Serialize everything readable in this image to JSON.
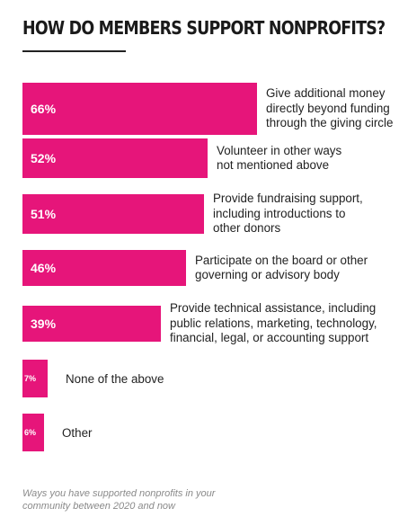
{
  "title": "HOW DO MEMBERS SUPPORT NONPROFITS?",
  "caption": "Ways you have supported nonprofits in your\ncommunity between 2020 and now",
  "colors": {
    "bar": "#e6157a",
    "text": "#222222",
    "caption": "#8a8a8a"
  },
  "chart_data": {
    "type": "bar",
    "orientation": "horizontal",
    "title": "HOW DO MEMBERS SUPPORT NONPROFITS?",
    "xlabel": "",
    "ylabel": "",
    "xlim": [
      0,
      66
    ],
    "grid": false,
    "legend": "none",
    "categories": [
      "Give additional money\ndirectly beyond funding\nthrough the giving circle",
      "Volunteer in other ways\nnot mentioned above",
      "Provide fundraising support,\nincluding introductions to\nother donors",
      "Participate on the board or other\ngoverning or advisory body",
      "Provide technical assistance, including\npublic relations, marketing, technology,\nfinancial, legal, or accounting support",
      "None of the above",
      "Other"
    ],
    "values": [
      66,
      52,
      51,
      46,
      39,
      7,
      6
    ],
    "value_labels": [
      "66%",
      "52%",
      "51%",
      "46%",
      "39%",
      "7%",
      "6%"
    ]
  }
}
